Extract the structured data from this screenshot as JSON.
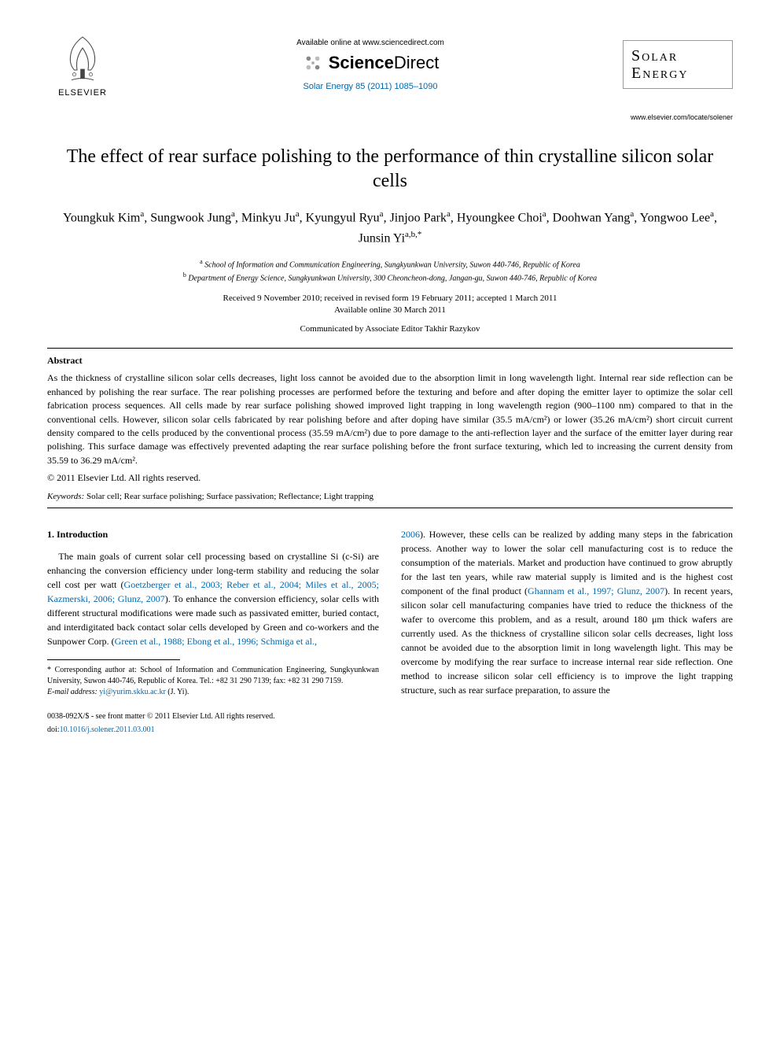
{
  "header": {
    "elsevier_label": "ELSEVIER",
    "available_text": "Available online at www.sciencedirect.com",
    "sciencedirect_prefix": "Science",
    "sciencedirect_suffix": "Direct",
    "citation": "Solar Energy 85 (2011) 1085–1090",
    "journal_line1": "Solar",
    "journal_line2": "Energy",
    "journal_url": "www.elsevier.com/locate/solener"
  },
  "article": {
    "title": "The effect of rear surface polishing to the performance of thin crystalline silicon solar cells",
    "authors_html": "Youngkuk Kim<sup>a</sup>, Sungwook Jung<sup>a</sup>, Minkyu Ju<sup>a</sup>, Kyungyul Ryu<sup>a</sup>, Jinjoo Park<sup>a</sup>, Hyoungkee Choi<sup>a</sup>, Doohwan Yang<sup>a</sup>, Yongwoo Lee<sup>a</sup>, Junsin Yi<sup>a,b,*</sup>",
    "affiliations": [
      {
        "sup": "a",
        "text": "School of Information and Communication Engineering, Sungkyunkwan University, Suwon 440-746, Republic of Korea"
      },
      {
        "sup": "b",
        "text": "Department of Energy Science, Sungkyunkwan University, 300 Cheoncheon-dong, Jangan-gu, Suwon 440-746, Republic of Korea"
      }
    ],
    "dates_line1": "Received 9 November 2010; received in revised form 19 February 2011; accepted 1 March 2011",
    "dates_line2": "Available online 30 March 2011",
    "communicated": "Communicated by Associate Editor Takhir Razykov"
  },
  "abstract": {
    "heading": "Abstract",
    "text": "As the thickness of crystalline silicon solar cells decreases, light loss cannot be avoided due to the absorption limit in long wavelength light. Internal rear side reflection can be enhanced by polishing the rear surface. The rear polishing processes are performed before the texturing and before and after doping the emitter layer to optimize the solar cell fabrication process sequences. All cells made by rear surface polishing showed improved light trapping in long wavelength region (900–1100 nm) compared to that in the conventional cells. However, silicon solar cells fabricated by rear polishing before and after doping have similar (35.5 mA/cm²) or lower (35.26 mA/cm²) short circuit current density compared to the cells produced by the conventional process (35.59 mA/cm²) due to pore damage to the anti-reflection layer and the surface of the emitter layer during rear polishing. This surface damage was effectively prevented adapting the rear surface polishing before the front surface texturing, which led to increasing the current density from 35.59 to 36.29 mA/cm².",
    "copyright": "© 2011 Elsevier Ltd. All rights reserved.",
    "keywords_label": "Keywords:",
    "keywords_values": "Solar cell; Rear surface polishing; Surface passivation; Reflectance; Light trapping"
  },
  "intro": {
    "heading": "1. Introduction",
    "col1_p1_pre": "The main goals of current solar cell processing based on crystalline Si (c-Si) are enhancing the conversion efficiency under long-term stability and reducing the solar cell cost per watt (",
    "col1_ref1": "Goetzberger et al., 2003; Reber et al., 2004; Miles et al., 2005; Kazmerski, 2006; Glunz, 2007",
    "col1_p1_mid": "). To enhance the conversion efficiency, solar cells with different structural modifications were made such as passivated emitter, buried contact, and interdigitated back contact solar cells developed by Green and co-workers and the Sunpower Corp. (",
    "col1_ref2": "Green et al., 1988; Ebong et al., 1996; Schmiga et al.,",
    "col2_ref1": "2006",
    "col2_p1_pre": "). However, these cells can be realized by adding many steps in the fabrication process. Another way to lower the solar cell manufacturing cost is to reduce the consumption of the materials. Market and production have continued to grow abruptly for the last ten years, while raw material supply is limited and is the highest cost component of the final product (",
    "col2_ref2": "Ghannam et al., 1997; Glunz, 2007",
    "col2_p1_post": "). In recent years, silicon solar cell manufacturing companies have tried to reduce the thickness of the wafer to overcome this problem, and as a result, around 180 μm thick wafers are currently used. As the thickness of crystalline silicon solar cells decreases, light loss cannot be avoided due to the absorption limit in long wavelength light. This may be overcome by modifying the rear surface to increase internal rear side reflection. One method to increase silicon solar cell efficiency is to improve the light trapping structure, such as rear surface preparation, to assure the"
  },
  "footnote": {
    "corr": "* Corresponding author at: School of Information and Communication Engineering, Sungkyunkwan University, Suwon 440-746, Republic of Korea. Tel.: +82 31 290 7139; fax: +82 31 290 7159.",
    "email_label": "E-mail address:",
    "email": "yi@yurim.skku.ac.kr",
    "email_who": "(J. Yi)."
  },
  "footer": {
    "issn": "0038-092X/$ - see front matter © 2011 Elsevier Ltd. All rights reserved.",
    "doi_label": "doi:",
    "doi": "10.1016/j.solener.2011.03.001"
  },
  "colors": {
    "link": "#0066aa",
    "text": "#000000",
    "border": "#999999"
  }
}
